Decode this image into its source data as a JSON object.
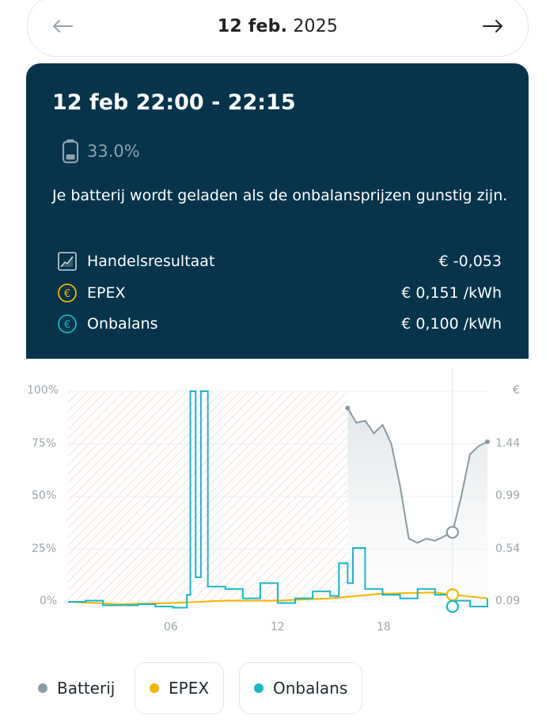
{
  "date_nav": {
    "date_bold": "12 feb.",
    "date_year": "2025"
  },
  "card": {
    "title": "12 feb 22:00 - 22:15",
    "battery_pct": "33.0%",
    "description": "Je batterij wordt geladen als de onbalansprijzen gunstig zijn.",
    "metrics": [
      {
        "icon": "chart-icon",
        "label": "Handelsresultaat",
        "value": "€ -0,053"
      },
      {
        "icon": "euro-coin-yellow-icon",
        "label": "EPEX",
        "value": "€ 0,151 /kWh"
      },
      {
        "icon": "euro-coin-cyan-icon",
        "label": "Onbalans",
        "value": "€ 0,100 /kWh"
      }
    ]
  },
  "chart_data": {
    "type": "line",
    "left_axis": {
      "ticks": [
        "100%",
        "75%",
        "50%",
        "25%",
        "0%"
      ],
      "range": [
        0,
        100
      ]
    },
    "right_axis": {
      "label": "€",
      "ticks": [
        "1.44",
        "0.99",
        "0.54",
        "0.09"
      ],
      "range": [
        0.09,
        1.89
      ]
    },
    "x_axis": {
      "ticks": [
        "06",
        "12",
        "18"
      ],
      "range_hours": [
        0,
        24
      ]
    },
    "series": [
      {
        "name": "Batterij",
        "color": "#8a9aa3",
        "points": [
          [
            16,
            92
          ],
          [
            16.5,
            85
          ],
          [
            17,
            86
          ],
          [
            17.5,
            80
          ],
          [
            18,
            84
          ],
          [
            18.5,
            75
          ],
          [
            19,
            55
          ],
          [
            19.5,
            30
          ],
          [
            20,
            28
          ],
          [
            20.5,
            30
          ],
          [
            21,
            29
          ],
          [
            21.5,
            31
          ],
          [
            22,
            33
          ],
          [
            22.5,
            50
          ],
          [
            23,
            70
          ],
          [
            23.5,
            74
          ],
          [
            24,
            76
          ]
        ]
      },
      {
        "name": "EPEX",
        "color": "#f5b400",
        "points": [
          [
            0,
            0.09
          ],
          [
            3,
            0.07
          ],
          [
            6,
            0.08
          ],
          [
            9,
            0.1
          ],
          [
            12,
            0.1
          ],
          [
            15,
            0.12
          ],
          [
            18,
            0.16
          ],
          [
            21,
            0.17
          ],
          [
            22,
            0.151
          ],
          [
            24,
            0.12
          ]
        ]
      },
      {
        "name": "Onbalans",
        "color": "#15b8c8",
        "points": [
          [
            0,
            0.09
          ],
          [
            1,
            0.1
          ],
          [
            2,
            0.06
          ],
          [
            3,
            0.06
          ],
          [
            4,
            0.07
          ],
          [
            5,
            0.05
          ],
          [
            6,
            0.04
          ],
          [
            6.8,
            0.15
          ],
          [
            7.0,
            1.89
          ],
          [
            7.3,
            0.3
          ],
          [
            7.6,
            1.89
          ],
          [
            8,
            0.22
          ],
          [
            9,
            0.2
          ],
          [
            10,
            0.12
          ],
          [
            11,
            0.25
          ],
          [
            12,
            0.08
          ],
          [
            13,
            0.12
          ],
          [
            14,
            0.18
          ],
          [
            15,
            0.14
          ],
          [
            15.5,
            0.42
          ],
          [
            16,
            0.25
          ],
          [
            16.3,
            0.55
          ],
          [
            17,
            0.2
          ],
          [
            18,
            0.15
          ],
          [
            19,
            0.12
          ],
          [
            20,
            0.2
          ],
          [
            21,
            0.15
          ],
          [
            22,
            0.1
          ],
          [
            23,
            0.05
          ],
          [
            24,
            0.12
          ]
        ]
      }
    ],
    "selected_time": "22:00",
    "past_until_hour": 16
  },
  "legend": [
    {
      "name": "Batterij",
      "color": "#8a9aa3"
    },
    {
      "name": "EPEX",
      "color": "#f5b400"
    },
    {
      "name": "Onbalans",
      "color": "#15b8c8"
    }
  ]
}
